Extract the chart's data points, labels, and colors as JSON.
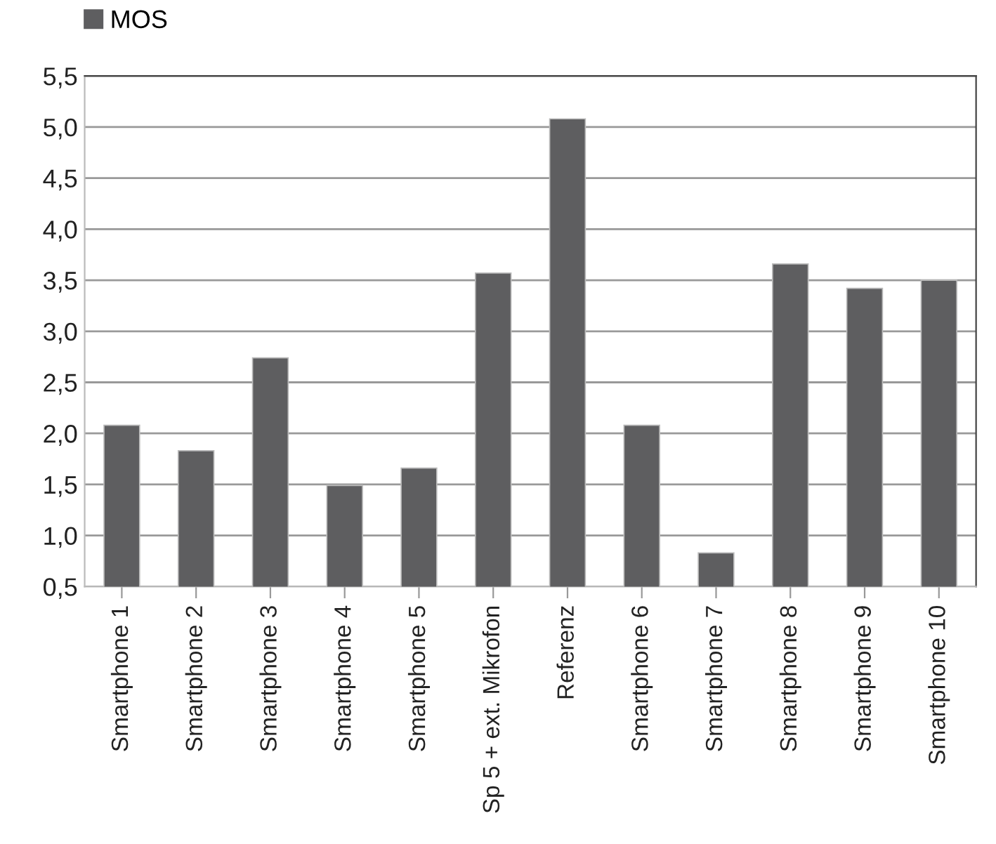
{
  "chart_data": {
    "type": "bar",
    "categories": [
      "Smartphone 1",
      "Smartphone 2",
      "Smartphone 3",
      "Smartphone 4",
      "Smartphone 5",
      "Sp 5 + ext. Mikrofon",
      "Referenz",
      "Smartphone 6",
      "Smartphone 7",
      "Smartphone 8",
      "Smartphone 9",
      "Smartphone 10"
    ],
    "series": [
      {
        "name": "MOS",
        "color": "#5e5e60",
        "values": [
          2.08,
          1.83,
          2.74,
          1.49,
          1.66,
          3.57,
          5.08,
          2.08,
          0.83,
          3.66,
          3.42,
          3.5
        ]
      }
    ],
    "ylim": [
      0.5,
      5.5
    ],
    "yticks": [
      {
        "value": 0.5,
        "label": "0,5"
      },
      {
        "value": 1.0,
        "label": "1,0"
      },
      {
        "value": 1.5,
        "label": "1,5"
      },
      {
        "value": 2.0,
        "label": "2,0"
      },
      {
        "value": 2.5,
        "label": "2,5"
      },
      {
        "value": 3.0,
        "label": "3,0"
      },
      {
        "value": 3.5,
        "label": "3,5"
      },
      {
        "value": 4.0,
        "label": "4,0"
      },
      {
        "value": 4.5,
        "label": "4,5"
      },
      {
        "value": 5.0,
        "label": "5,0"
      },
      {
        "value": 5.5,
        "label": "5,5"
      }
    ],
    "grid": "y",
    "legend": "top left"
  }
}
